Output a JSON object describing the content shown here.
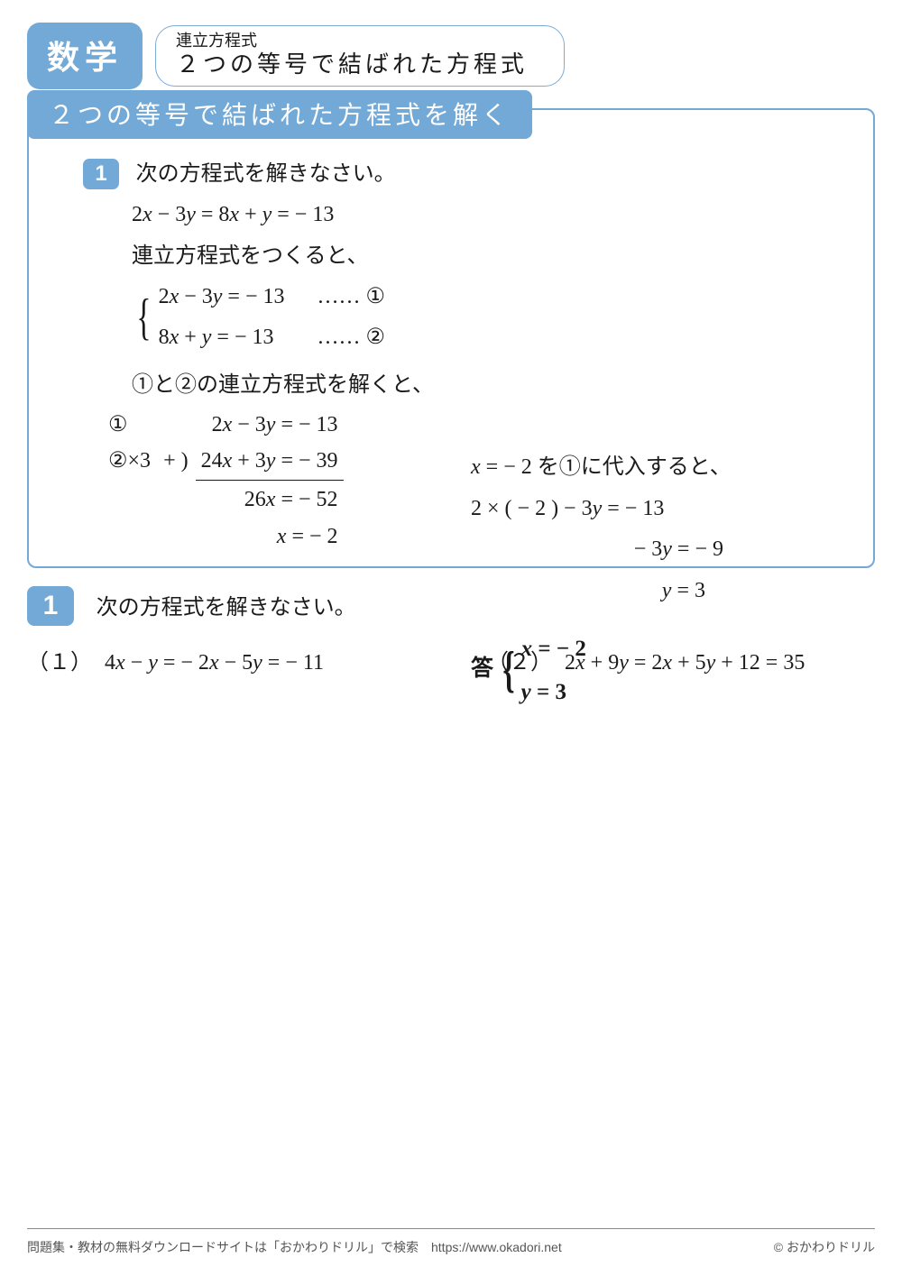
{
  "colors": {
    "accent": "#73a9d6",
    "text": "#1a1a1a",
    "background": "#ffffff",
    "footer_rule": "#888888",
    "footer_text": "#555555"
  },
  "header": {
    "subject": "数学",
    "topic_small": "連立方程式",
    "topic_main": "２つの等号で結ばれた方程式"
  },
  "panel": {
    "title": "２つの等号で結ばれた方程式を解く",
    "step_badge": "1",
    "instruction": "次の方程式を解きなさい。",
    "given_eq": "2x − 3y = 8x + y = − 13",
    "make_system": "連立方程式をつくると、",
    "sys_row1": "2x − 3y = − 13",
    "sys_row2": "8x + y = − 13",
    "sys_tag1": "…… ①",
    "sys_tag2": "…… ②",
    "solve_system": "①と②の連立方程式を解くと、",
    "work": {
      "r1_left": "①",
      "r1_right": "2x − 3y = − 13",
      "r2_left": "②×3",
      "r2_plus": "+ )",
      "r2_right": "24x + 3y = − 39",
      "r3": "26x = − 52",
      "r4": "x = − 2"
    },
    "sub": {
      "line1": "x = − 2 を①に代入すると、",
      "line2": "2 × ( − 2 ) − 3y = − 13",
      "line3": "− 3y = − 9",
      "line4": "y = 3"
    },
    "answer_label": "答",
    "answer_x": "x = − 2",
    "answer_y": "y = 3"
  },
  "exercise": {
    "badge": "1",
    "instruction": "次の方程式を解きなさい。",
    "problems": [
      {
        "num": "（１）",
        "eq": "4x − y = − 2x − 5y = − 11"
      },
      {
        "num": "（２）",
        "eq": "2x + 9y = 2x + 5y + 12 = 35"
      }
    ]
  },
  "footer": {
    "left": "問題集・教材の無料ダウンロードサイトは「おかわりドリル」で検索　https://www.okadori.net",
    "right": "© おかわりドリル"
  }
}
